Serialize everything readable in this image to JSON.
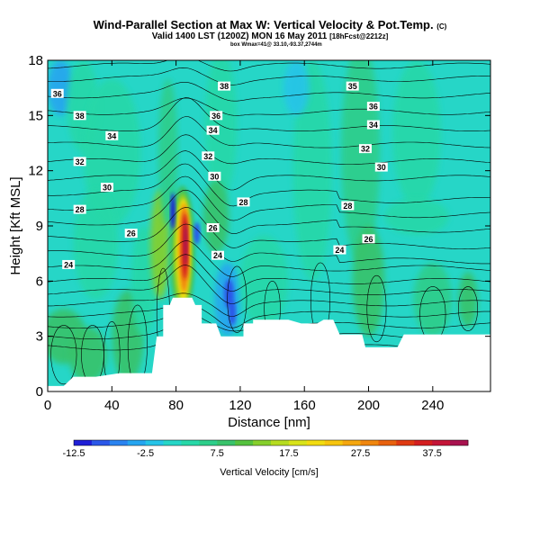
{
  "header": {
    "title": "Wind-Parallel Section at Max W: Vertical Velocity & Pot.Temp.",
    "copyright": "(C)",
    "valid": "Valid 1400 LST (1200Z) MON 16 May 2011",
    "forecast": "[18hFcst@2212z]",
    "location": "box Wmax=41@ 33.10,-93.37,2744m"
  },
  "chart_data": {
    "type": "heatmap",
    "title": "Wind-Parallel Section at Max W: Vertical Velocity & Pot.Temp.",
    "xlabel": "Distance [nm]",
    "ylabel": "Height [Kft MSL]",
    "xlim": [
      0,
      276
    ],
    "ylim": [
      0,
      18
    ],
    "xticks": [
      0,
      40,
      80,
      120,
      160,
      200,
      240
    ],
    "yticks": [
      0,
      3,
      6,
      9,
      12,
      15,
      18
    ],
    "shaded_field": "Vertical Velocity [cm/s]",
    "contour_field": "Potential Temperature",
    "colorbar": {
      "label": "Vertical Velocity [cm/s]",
      "tick_labels": [
        "-12.5",
        "-2.5",
        "7.5",
        "17.5",
        "27.5",
        "37.5"
      ],
      "tick_values": [
        -12.5,
        -2.5,
        7.5,
        17.5,
        27.5,
        37.5
      ],
      "levels": [
        -12.5,
        -10,
        -7.5,
        -5,
        -2.5,
        0,
        2.5,
        5,
        7.5,
        10,
        12.5,
        15,
        17.5,
        20,
        22.5,
        25,
        27.5,
        30,
        32.5,
        35,
        37.5,
        40,
        42.5
      ],
      "colors": [
        "#1f1fd6",
        "#2b57e8",
        "#2a83f0",
        "#25a5f0",
        "#26c4e8",
        "#26d6c7",
        "#27d8a8",
        "#2dce8a",
        "#39c36b",
        "#55c23e",
        "#86cf2c",
        "#b6dc20",
        "#d8e31a",
        "#f2dc10",
        "#f7c50e",
        "#f5a70f",
        "#f0860e",
        "#e8610e",
        "#df3a12",
        "#d41f20",
        "#c41538",
        "#a8124f"
      ]
    },
    "max_w": 41,
    "theta_labels": [
      {
        "value": "36",
        "x": 6,
        "y": 16.2
      },
      {
        "value": "38",
        "x": 20,
        "y": 15
      },
      {
        "value": "38",
        "x": 110,
        "y": 16.6
      },
      {
        "value": "36",
        "x": 105,
        "y": 15
      },
      {
        "value": "35",
        "x": 190,
        "y": 16.6
      },
      {
        "value": "36",
        "x": 203,
        "y": 15.5
      },
      {
        "value": "34",
        "x": 40,
        "y": 13.9
      },
      {
        "value": "34",
        "x": 103,
        "y": 14.2
      },
      {
        "value": "34",
        "x": 203,
        "y": 14.5
      },
      {
        "value": "32",
        "x": 20,
        "y": 12.5
      },
      {
        "value": "32",
        "x": 100,
        "y": 12.8
      },
      {
        "value": "32",
        "x": 198,
        "y": 13.2
      },
      {
        "value": "30",
        "x": 37,
        "y": 11.1
      },
      {
        "value": "30",
        "x": 104,
        "y": 11.7
      },
      {
        "value": "30",
        "x": 208,
        "y": 12.2
      },
      {
        "value": "28",
        "x": 20,
        "y": 9.9
      },
      {
        "value": "28",
        "x": 122,
        "y": 10.3
      },
      {
        "value": "28",
        "x": 187,
        "y": 10.1
      },
      {
        "value": "26",
        "x": 52,
        "y": 8.6
      },
      {
        "value": "26",
        "x": 103,
        "y": 8.9
      },
      {
        "value": "26",
        "x": 200,
        "y": 8.3
      },
      {
        "value": "24",
        "x": 13,
        "y": 6.9
      },
      {
        "value": "24",
        "x": 106,
        "y": 7.4
      },
      {
        "value": "24",
        "x": 182,
        "y": 7.7
      }
    ],
    "terrain_profile": [
      [
        0,
        0.3
      ],
      [
        10,
        0.3
      ],
      [
        16,
        0.8
      ],
      [
        30,
        0.8
      ],
      [
        45,
        1.0
      ],
      [
        65,
        1.0
      ],
      [
        68,
        3.0
      ],
      [
        72,
        3.0
      ],
      [
        72,
        4.7
      ],
      [
        76,
        4.7
      ],
      [
        78,
        5.1
      ],
      [
        90,
        5.1
      ],
      [
        92,
        4.7
      ],
      [
        96,
        4.7
      ],
      [
        96,
        3.7
      ],
      [
        105,
        3.7
      ],
      [
        108,
        3.0
      ],
      [
        122,
        3.0
      ],
      [
        122,
        3.7
      ],
      [
        128,
        3.7
      ],
      [
        128,
        3.9
      ],
      [
        150,
        3.9
      ],
      [
        158,
        3.7
      ],
      [
        168,
        3.7
      ],
      [
        172,
        3.9
      ],
      [
        178,
        3.9
      ],
      [
        182,
        3.1
      ],
      [
        196,
        3.1
      ],
      [
        198,
        2.4
      ],
      [
        218,
        2.4
      ],
      [
        222,
        3.1
      ],
      [
        276,
        3.1
      ]
    ]
  }
}
